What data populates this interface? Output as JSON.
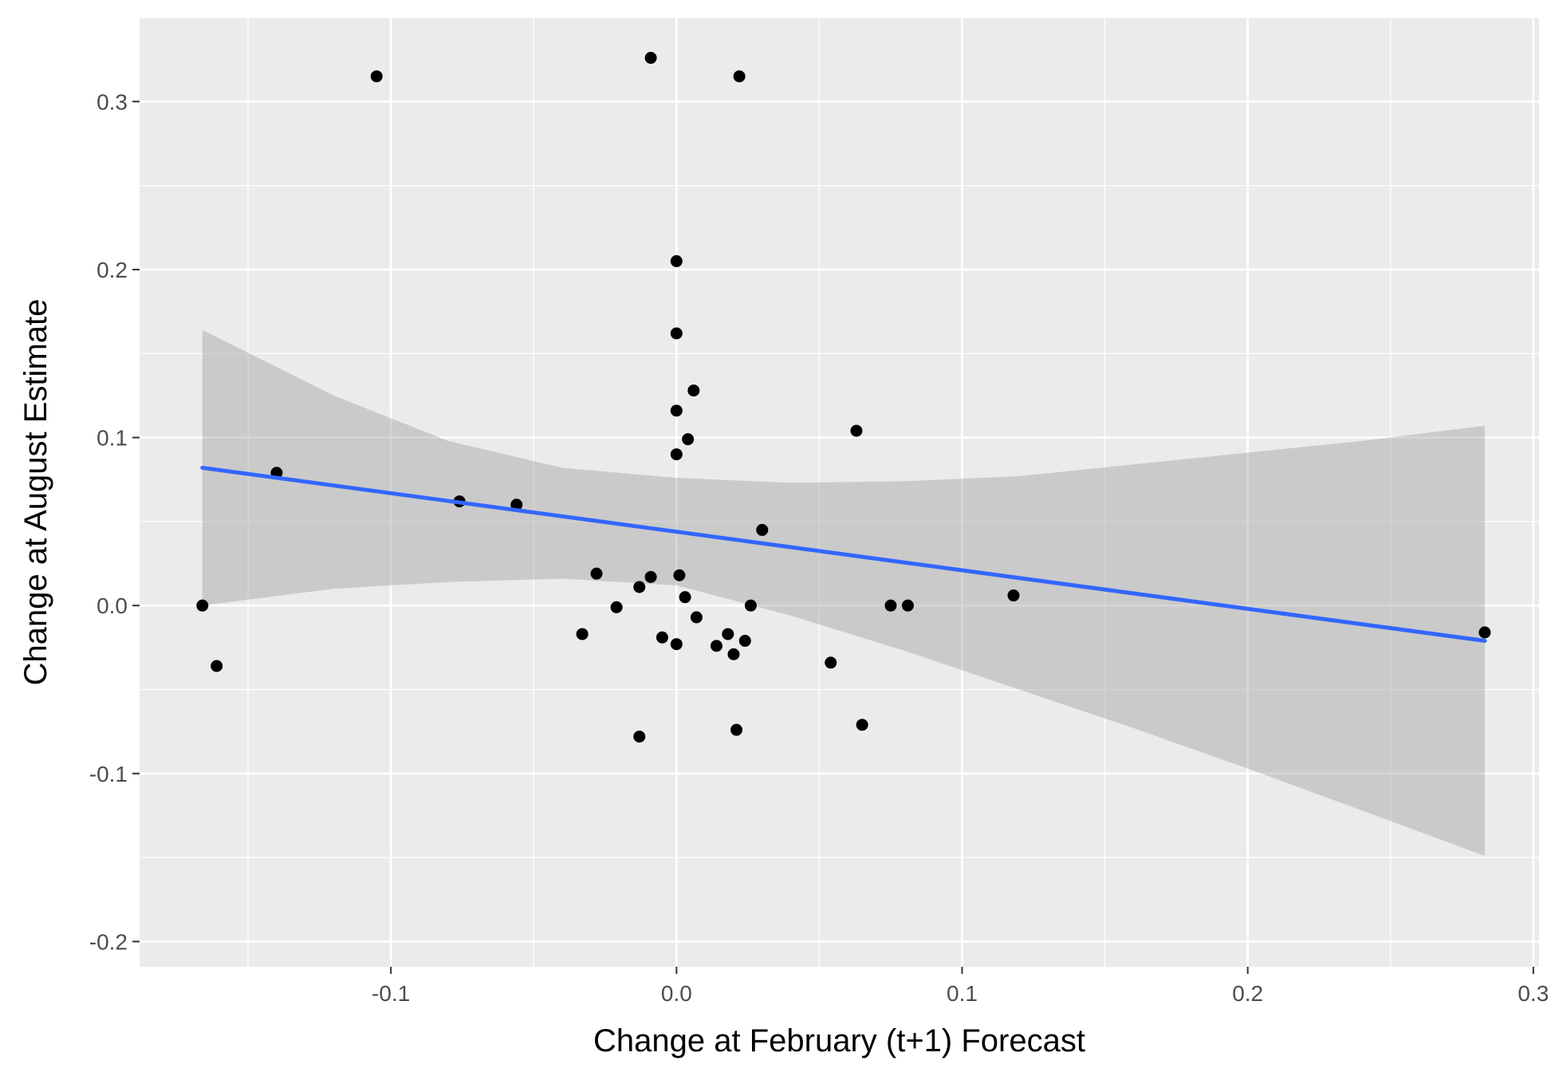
{
  "chart_data": {
    "type": "scatter",
    "title": "",
    "xlabel": "Change at February (t+1) Forecast",
    "ylabel": "Change at August Estimate",
    "xlim": [
      -0.188,
      0.302
    ],
    "ylim": [
      -0.215,
      0.35
    ],
    "x_ticks": [
      -0.1,
      0.0,
      0.1,
      0.2,
      0.3
    ],
    "x_tick_labels": [
      "-0.1",
      "0.0",
      "0.1",
      "0.2",
      "0.3"
    ],
    "y_ticks": [
      -0.2,
      -0.1,
      0.0,
      0.1,
      0.2,
      0.3
    ],
    "y_tick_labels": [
      "-0.2",
      "-0.1",
      "0.0",
      "0.1",
      "0.2",
      "0.3"
    ],
    "grid": true,
    "legend": "none",
    "colors": {
      "panel": "#ebebeb",
      "grid": "#ffffff",
      "point": "#000000",
      "fit_line": "#3366ff",
      "confidence_band": "#999999"
    },
    "points": [
      {
        "x": -0.166,
        "y": 0.0
      },
      {
        "x": -0.161,
        "y": -0.036
      },
      {
        "x": -0.14,
        "y": 0.079
      },
      {
        "x": -0.105,
        "y": 0.315
      },
      {
        "x": -0.076,
        "y": 0.062
      },
      {
        "x": -0.056,
        "y": 0.06
      },
      {
        "x": -0.033,
        "y": -0.017
      },
      {
        "x": -0.028,
        "y": 0.019
      },
      {
        "x": -0.021,
        "y": -0.001
      },
      {
        "x": -0.013,
        "y": 0.011
      },
      {
        "x": -0.013,
        "y": -0.078
      },
      {
        "x": -0.009,
        "y": 0.017
      },
      {
        "x": -0.009,
        "y": 0.326
      },
      {
        "x": -0.005,
        "y": -0.019
      },
      {
        "x": 0.0,
        "y": -0.023
      },
      {
        "x": 0.0,
        "y": 0.09
      },
      {
        "x": 0.0,
        "y": 0.116
      },
      {
        "x": 0.0,
        "y": 0.162
      },
      {
        "x": 0.0,
        "y": 0.205
      },
      {
        "x": 0.001,
        "y": 0.018
      },
      {
        "x": 0.003,
        "y": 0.005
      },
      {
        "x": 0.004,
        "y": 0.099
      },
      {
        "x": 0.006,
        "y": 0.128
      },
      {
        "x": 0.007,
        "y": -0.007
      },
      {
        "x": 0.014,
        "y": -0.024
      },
      {
        "x": 0.018,
        "y": -0.017
      },
      {
        "x": 0.02,
        "y": -0.029
      },
      {
        "x": 0.021,
        "y": -0.074
      },
      {
        "x": 0.022,
        "y": 0.315
      },
      {
        "x": 0.024,
        "y": -0.021
      },
      {
        "x": 0.026,
        "y": 0.0
      },
      {
        "x": 0.03,
        "y": 0.045
      },
      {
        "x": 0.054,
        "y": -0.034
      },
      {
        "x": 0.063,
        "y": 0.104
      },
      {
        "x": 0.065,
        "y": -0.071
      },
      {
        "x": 0.075,
        "y": 0.0
      },
      {
        "x": 0.081,
        "y": 0.0
      },
      {
        "x": 0.118,
        "y": 0.006
      },
      {
        "x": 0.283,
        "y": -0.016
      }
    ],
    "fit_line": {
      "x": [
        -0.166,
        0.283
      ],
      "y": [
        0.082,
        -0.021
      ]
    },
    "confidence_band": {
      "x": [
        -0.166,
        -0.12,
        -0.08,
        -0.04,
        0.0,
        0.04,
        0.08,
        0.12,
        0.16,
        0.2,
        0.24,
        0.283
      ],
      "lower": [
        0.0,
        0.01,
        0.014,
        0.016,
        0.012,
        -0.006,
        -0.027,
        -0.05,
        -0.073,
        -0.097,
        -0.122,
        -0.149
      ],
      "upper": [
        0.164,
        0.125,
        0.098,
        0.082,
        0.076,
        0.073,
        0.074,
        0.077,
        0.084,
        0.091,
        0.098,
        0.107
      ]
    }
  }
}
